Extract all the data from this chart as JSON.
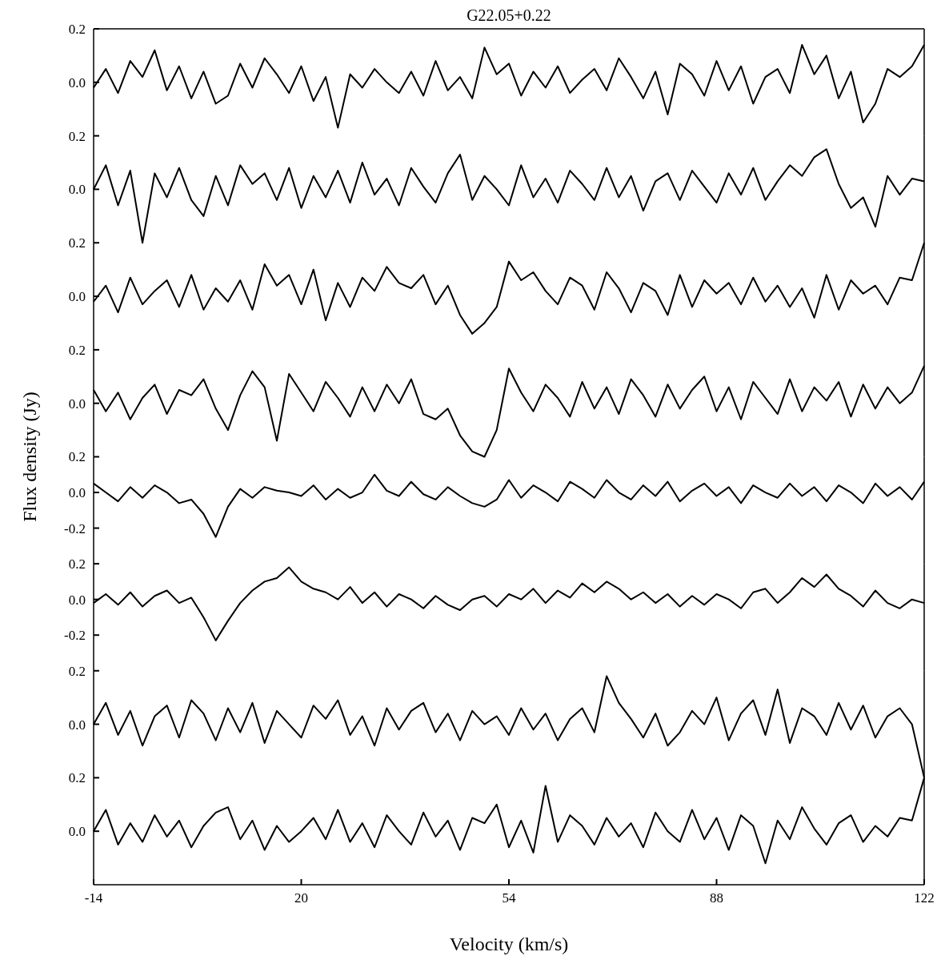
{
  "chart_data": [
    {
      "type": "line",
      "title": "G22.05+0.22",
      "x": [
        -14,
        -12,
        -10,
        -8,
        -6,
        -4,
        -2,
        0,
        2,
        4,
        6,
        8,
        10,
        12,
        14,
        16,
        18,
        20,
        22,
        24,
        26,
        28,
        30,
        32,
        34,
        36,
        38,
        40,
        42,
        44,
        46,
        48,
        50,
        52,
        54,
        56,
        58,
        60,
        62,
        64,
        66,
        68,
        70,
        72,
        74,
        76,
        78,
        80,
        82,
        84,
        86,
        88,
        90,
        92,
        94,
        96,
        98,
        100,
        102,
        104,
        106,
        108,
        110,
        112,
        114,
        116,
        118,
        120,
        122
      ],
      "xlim": [
        -14,
        122
      ],
      "ylim": [
        -0.2,
        0.2
      ],
      "yticks": [
        {
          "value": 0.2,
          "label": "0.2"
        },
        {
          "value": 0,
          "label": "0.0"
        }
      ],
      "tick_labels": "y",
      "series": [
        {
          "color": "#000000",
          "values": [
            -0.02,
            0.05,
            -0.04,
            0.08,
            0.02,
            0.12,
            -0.03,
            0.06,
            -0.06,
            0.04,
            -0.08,
            -0.05,
            0.07,
            -0.02,
            0.09,
            0.03,
            -0.04,
            0.06,
            -0.07,
            0.02,
            -0.17,
            0.03,
            -0.02,
            0.05,
            0.0,
            -0.04,
            0.04,
            -0.05,
            0.08,
            -0.03,
            0.02,
            -0.06,
            0.13,
            0.03,
            0.07,
            -0.05,
            0.04,
            -0.02,
            0.06,
            -0.04,
            0.01,
            0.05,
            -0.03,
            0.09,
            0.02,
            -0.06,
            0.04,
            -0.12,
            0.07,
            0.03,
            -0.05,
            0.08,
            -0.03,
            0.06,
            -0.08,
            0.02,
            0.05,
            -0.04,
            0.14,
            0.03,
            0.1,
            -0.06,
            0.04,
            -0.15,
            -0.08,
            0.05,
            0.02,
            0.06,
            0.14
          ]
        }
      ]
    },
    {
      "type": "line",
      "x": [
        -14,
        -12,
        -10,
        -8,
        -6,
        -4,
        -2,
        0,
        2,
        4,
        6,
        8,
        10,
        12,
        14,
        16,
        18,
        20,
        22,
        24,
        26,
        28,
        30,
        32,
        34,
        36,
        38,
        40,
        42,
        44,
        46,
        48,
        50,
        52,
        54,
        56,
        58,
        60,
        62,
        64,
        66,
        68,
        70,
        72,
        74,
        76,
        78,
        80,
        82,
        84,
        86,
        88,
        90,
        92,
        94,
        96,
        98,
        100,
        102,
        104,
        106,
        108,
        110,
        112,
        114,
        116,
        118,
        120,
        122
      ],
      "xlim": [
        -14,
        122
      ],
      "ylim": [
        -0.2,
        0.2
      ],
      "yticks": [
        {
          "value": 0.2,
          "label": "0.2"
        },
        {
          "value": 0,
          "label": "0.0"
        }
      ],
      "tick_labels": "y",
      "series": [
        {
          "color": "#000000",
          "values": [
            0.0,
            0.09,
            -0.06,
            0.07,
            -0.2,
            0.06,
            -0.03,
            0.08,
            -0.04,
            -0.1,
            0.05,
            -0.06,
            0.09,
            0.02,
            0.06,
            -0.04,
            0.08,
            -0.07,
            0.05,
            -0.03,
            0.07,
            -0.05,
            0.1,
            -0.02,
            0.04,
            -0.06,
            0.08,
            0.01,
            -0.05,
            0.06,
            0.13,
            -0.04,
            0.05,
            0.0,
            -0.06,
            0.09,
            -0.03,
            0.04,
            -0.05,
            0.07,
            0.02,
            -0.04,
            0.08,
            -0.03,
            0.05,
            -0.08,
            0.03,
            0.06,
            -0.04,
            0.07,
            0.01,
            -0.05,
            0.06,
            -0.02,
            0.08,
            -0.04,
            0.03,
            0.09,
            0.05,
            0.12,
            0.15,
            0.02,
            -0.07,
            -0.03,
            -0.14,
            0.05,
            -0.02,
            0.04,
            0.03
          ]
        }
      ]
    },
    {
      "type": "line",
      "x": [
        -14,
        -12,
        -10,
        -8,
        -6,
        -4,
        -2,
        0,
        2,
        4,
        6,
        8,
        10,
        12,
        14,
        16,
        18,
        20,
        22,
        24,
        26,
        28,
        30,
        32,
        34,
        36,
        38,
        40,
        42,
        44,
        46,
        48,
        50,
        52,
        54,
        56,
        58,
        60,
        62,
        64,
        66,
        68,
        70,
        72,
        74,
        76,
        78,
        80,
        82,
        84,
        86,
        88,
        90,
        92,
        94,
        96,
        98,
        100,
        102,
        104,
        106,
        108,
        110,
        112,
        114,
        116,
        118,
        120,
        122
      ],
      "xlim": [
        -14,
        122
      ],
      "ylim": [
        -0.2,
        0.2
      ],
      "yticks": [
        {
          "value": 0.2,
          "label": "0.2"
        },
        {
          "value": 0,
          "label": "0.0"
        }
      ],
      "tick_labels": "y",
      "series": [
        {
          "color": "#000000",
          "values": [
            -0.02,
            0.04,
            -0.06,
            0.07,
            -0.03,
            0.02,
            0.06,
            -0.04,
            0.08,
            -0.05,
            0.03,
            -0.02,
            0.06,
            -0.05,
            0.12,
            0.04,
            0.08,
            -0.03,
            0.1,
            -0.09,
            0.05,
            -0.04,
            0.07,
            0.02,
            0.11,
            0.05,
            0.03,
            0.08,
            -0.03,
            0.04,
            -0.07,
            -0.14,
            -0.1,
            -0.04,
            0.13,
            0.06,
            0.09,
            0.02,
            -0.03,
            0.07,
            0.04,
            -0.05,
            0.09,
            0.03,
            -0.06,
            0.05,
            0.02,
            -0.07,
            0.08,
            -0.04,
            0.06,
            0.01,
            0.05,
            -0.03,
            0.07,
            -0.02,
            0.04,
            -0.04,
            0.03,
            -0.08,
            0.08,
            -0.05,
            0.06,
            0.01,
            0.04,
            -0.03,
            0.07,
            0.06,
            0.2
          ]
        }
      ]
    },
    {
      "type": "line",
      "x": [
        -14,
        -12,
        -10,
        -8,
        -6,
        -4,
        -2,
        0,
        2,
        4,
        6,
        8,
        10,
        12,
        14,
        16,
        18,
        20,
        22,
        24,
        26,
        28,
        30,
        32,
        34,
        36,
        38,
        40,
        42,
        44,
        46,
        48,
        50,
        52,
        54,
        56,
        58,
        60,
        62,
        64,
        66,
        68,
        70,
        72,
        74,
        76,
        78,
        80,
        82,
        84,
        86,
        88,
        90,
        92,
        94,
        96,
        98,
        100,
        102,
        104,
        106,
        108,
        110,
        112,
        114,
        116,
        118,
        120,
        122
      ],
      "xlim": [
        -14,
        122
      ],
      "ylim": [
        -0.2,
        0.2
      ],
      "yticks": [
        {
          "value": 0.2,
          "label": "0.2"
        },
        {
          "value": 0,
          "label": "0.0"
        }
      ],
      "tick_labels": "y",
      "series": [
        {
          "color": "#000000",
          "values": [
            0.05,
            -0.03,
            0.04,
            -0.06,
            0.02,
            0.07,
            -0.04,
            0.05,
            0.03,
            0.09,
            -0.02,
            -0.1,
            0.03,
            0.12,
            0.06,
            -0.14,
            0.11,
            0.04,
            -0.03,
            0.08,
            0.02,
            -0.05,
            0.06,
            -0.03,
            0.07,
            0.0,
            0.09,
            -0.04,
            -0.06,
            -0.02,
            -0.12,
            -0.18,
            -0.2,
            -0.1,
            0.13,
            0.04,
            -0.03,
            0.07,
            0.02,
            -0.05,
            0.08,
            -0.02,
            0.06,
            -0.04,
            0.09,
            0.03,
            -0.05,
            0.07,
            -0.02,
            0.05,
            0.1,
            -0.03,
            0.06,
            -0.06,
            0.08,
            0.02,
            -0.04,
            0.09,
            -0.03,
            0.06,
            0.01,
            0.08,
            -0.05,
            0.07,
            -0.02,
            0.06,
            0.0,
            0.04,
            0.14
          ]
        }
      ]
    },
    {
      "type": "line",
      "ylabel": "Flux density (Jy)",
      "x": [
        -14,
        -12,
        -10,
        -8,
        -6,
        -4,
        -2,
        0,
        2,
        4,
        6,
        8,
        10,
        12,
        14,
        16,
        18,
        20,
        22,
        24,
        26,
        28,
        30,
        32,
        34,
        36,
        38,
        40,
        42,
        44,
        46,
        48,
        50,
        52,
        54,
        56,
        58,
        60,
        62,
        64,
        66,
        68,
        70,
        72,
        74,
        76,
        78,
        80,
        82,
        84,
        86,
        88,
        90,
        92,
        94,
        96,
        98,
        100,
        102,
        104,
        106,
        108,
        110,
        112,
        114,
        116,
        118,
        120,
        122
      ],
      "xlim": [
        -14,
        122
      ],
      "ylim": [
        -0.4,
        0.2
      ],
      "yticks": [
        {
          "value": 0.2,
          "label": "0.2"
        },
        {
          "value": 0,
          "label": "0.0"
        },
        {
          "value": -0.2,
          "label": "-0.2"
        }
      ],
      "tick_labels": "y",
      "series": [
        {
          "color": "#000000",
          "values": [
            0.05,
            0.0,
            -0.05,
            0.03,
            -0.03,
            0.04,
            0.0,
            -0.06,
            -0.04,
            -0.12,
            -0.25,
            -0.08,
            0.02,
            -0.03,
            0.03,
            0.01,
            0.0,
            -0.02,
            0.04,
            -0.04,
            0.02,
            -0.03,
            0.0,
            0.1,
            0.01,
            -0.02,
            0.06,
            -0.01,
            -0.04,
            0.03,
            -0.02,
            -0.06,
            -0.08,
            -0.04,
            0.07,
            -0.03,
            0.04,
            0.0,
            -0.05,
            0.06,
            0.02,
            -0.03,
            0.07,
            0.0,
            -0.04,
            0.04,
            -0.02,
            0.06,
            -0.05,
            0.01,
            0.05,
            -0.02,
            0.03,
            -0.06,
            0.04,
            0.0,
            -0.03,
            0.05,
            -0.02,
            0.03,
            -0.05,
            0.04,
            0.0,
            -0.06,
            0.05,
            -0.02,
            0.03,
            -0.04,
            0.06
          ]
        }
      ]
    },
    {
      "type": "line",
      "x": [
        -14,
        -12,
        -10,
        -8,
        -6,
        -4,
        -2,
        0,
        2,
        4,
        6,
        8,
        10,
        12,
        14,
        16,
        18,
        20,
        22,
        24,
        26,
        28,
        30,
        32,
        34,
        36,
        38,
        40,
        42,
        44,
        46,
        48,
        50,
        52,
        54,
        56,
        58,
        60,
        62,
        64,
        66,
        68,
        70,
        72,
        74,
        76,
        78,
        80,
        82,
        84,
        86,
        88,
        90,
        92,
        94,
        96,
        98,
        100,
        102,
        104,
        106,
        108,
        110,
        112,
        114,
        116,
        118,
        120,
        122
      ],
      "xlim": [
        -14,
        122
      ],
      "ylim": [
        -0.4,
        0.2
      ],
      "yticks": [
        {
          "value": 0.2,
          "label": "0.2"
        },
        {
          "value": 0,
          "label": "0.0"
        },
        {
          "value": -0.2,
          "label": "-0.2"
        }
      ],
      "tick_labels": "y",
      "series": [
        {
          "color": "#000000",
          "values": [
            -0.02,
            0.03,
            -0.03,
            0.04,
            -0.04,
            0.02,
            0.05,
            -0.02,
            0.01,
            -0.1,
            -0.23,
            -0.12,
            -0.02,
            0.05,
            0.1,
            0.12,
            0.18,
            0.1,
            0.06,
            0.04,
            0.0,
            0.07,
            -0.02,
            0.04,
            -0.04,
            0.03,
            0.0,
            -0.05,
            0.02,
            -0.03,
            -0.06,
            0.0,
            0.02,
            -0.04,
            0.03,
            0.0,
            0.06,
            -0.02,
            0.05,
            0.01,
            0.09,
            0.04,
            0.1,
            0.06,
            0.0,
            0.04,
            -0.02,
            0.03,
            -0.04,
            0.02,
            -0.03,
            0.03,
            0.0,
            -0.05,
            0.04,
            0.06,
            -0.02,
            0.04,
            0.12,
            0.07,
            0.14,
            0.06,
            0.02,
            -0.04,
            0.05,
            -0.02,
            -0.05,
            0.0,
            -0.02
          ]
        }
      ]
    },
    {
      "type": "line",
      "x": [
        -14,
        -12,
        -10,
        -8,
        -6,
        -4,
        -2,
        0,
        2,
        4,
        6,
        8,
        10,
        12,
        14,
        16,
        18,
        20,
        22,
        24,
        26,
        28,
        30,
        32,
        34,
        36,
        38,
        40,
        42,
        44,
        46,
        48,
        50,
        52,
        54,
        56,
        58,
        60,
        62,
        64,
        66,
        68,
        70,
        72,
        74,
        76,
        78,
        80,
        82,
        84,
        86,
        88,
        90,
        92,
        94,
        96,
        98,
        100,
        102,
        104,
        106,
        108,
        110,
        112,
        114,
        116,
        118,
        120,
        122
      ],
      "xlim": [
        -14,
        122
      ],
      "ylim": [
        -0.2,
        0.2
      ],
      "yticks": [
        {
          "value": 0.2,
          "label": "0.2"
        },
        {
          "value": 0,
          "label": "0.0"
        }
      ],
      "tick_labels": "y",
      "series": [
        {
          "color": "#000000",
          "values": [
            0.0,
            0.08,
            -0.04,
            0.05,
            -0.08,
            0.03,
            0.07,
            -0.05,
            0.09,
            0.04,
            -0.06,
            0.06,
            -0.03,
            0.08,
            -0.07,
            0.05,
            0.0,
            -0.05,
            0.07,
            0.02,
            0.09,
            -0.04,
            0.03,
            -0.08,
            0.06,
            -0.02,
            0.05,
            0.08,
            -0.03,
            0.04,
            -0.06,
            0.05,
            0.0,
            0.03,
            -0.04,
            0.06,
            -0.02,
            0.04,
            -0.06,
            0.02,
            0.06,
            -0.03,
            0.18,
            0.08,
            0.02,
            -0.05,
            0.04,
            -0.08,
            -0.03,
            0.05,
            0.0,
            0.1,
            -0.06,
            0.04,
            0.09,
            -0.04,
            0.13,
            -0.07,
            0.06,
            0.03,
            -0.04,
            0.08,
            -0.02,
            0.07,
            -0.05,
            0.03,
            0.06,
            0.0,
            -0.2
          ]
        }
      ]
    },
    {
      "type": "line",
      "xlabel": "Velocity (km/s)",
      "x": [
        -14,
        -12,
        -10,
        -8,
        -6,
        -4,
        -2,
        0,
        2,
        4,
        6,
        8,
        10,
        12,
        14,
        16,
        18,
        20,
        22,
        24,
        26,
        28,
        30,
        32,
        34,
        36,
        38,
        40,
        42,
        44,
        46,
        48,
        50,
        52,
        54,
        56,
        58,
        60,
        62,
        64,
        66,
        68,
        70,
        72,
        74,
        76,
        78,
        80,
        82,
        84,
        86,
        88,
        90,
        92,
        94,
        96,
        98,
        100,
        102,
        104,
        106,
        108,
        110,
        112,
        114,
        116,
        118,
        120,
        122
      ],
      "xlim": [
        -14,
        122
      ],
      "xticks": [
        -14,
        20,
        54,
        88,
        122
      ],
      "ylim": [
        -0.2,
        0.2
      ],
      "yticks": [
        {
          "value": 0.2,
          "label": "0.2"
        },
        {
          "value": 0,
          "label": "0.0"
        }
      ],
      "series": [
        {
          "color": "#000000",
          "values": [
            0.0,
            0.08,
            -0.05,
            0.03,
            -0.04,
            0.06,
            -0.02,
            0.04,
            -0.06,
            0.02,
            0.07,
            0.09,
            -0.03,
            0.04,
            -0.07,
            0.02,
            -0.04,
            0.0,
            0.05,
            -0.03,
            0.08,
            -0.04,
            0.03,
            -0.06,
            0.06,
            0.0,
            -0.05,
            0.07,
            -0.02,
            0.04,
            -0.07,
            0.05,
            0.03,
            0.1,
            -0.06,
            0.04,
            -0.08,
            0.17,
            -0.04,
            0.06,
            0.02,
            -0.05,
            0.05,
            -0.02,
            0.03,
            -0.06,
            0.07,
            0.0,
            -0.04,
            0.08,
            -0.03,
            0.05,
            -0.07,
            0.06,
            0.02,
            -0.12,
            0.04,
            -0.03,
            0.09,
            0.01,
            -0.05,
            0.03,
            0.06,
            -0.04,
            0.02,
            -0.02,
            0.05,
            0.04,
            0.2
          ]
        }
      ]
    }
  ]
}
